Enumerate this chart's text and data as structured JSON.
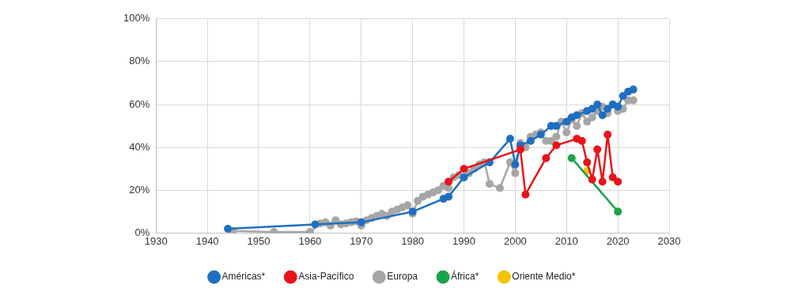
{
  "chart_data": {
    "type": "line",
    "xlim": [
      1930,
      2030
    ],
    "xticks": [
      1930,
      1940,
      1950,
      1960,
      1970,
      1980,
      1990,
      2000,
      2010,
      2020,
      2030
    ],
    "ylim": [
      0,
      100
    ],
    "yticks": [
      {
        "value": 0,
        "label": "0%"
      },
      {
        "value": 20,
        "label": "20%"
      },
      {
        "value": 40,
        "label": "40%"
      },
      {
        "value": 60,
        "label": "60%"
      },
      {
        "value": 80,
        "label": "80%"
      },
      {
        "value": 100,
        "label": "100%"
      }
    ],
    "grid": true,
    "legend": "bottom",
    "marker": "circle",
    "line_style": "solid",
    "series": [
      {
        "name": "Américas*",
        "color": "#1f6fc1",
        "x": [
          1944,
          1961,
          1970,
          1980,
          1986,
          1987,
          1990,
          1995,
          1999,
          2000,
          2001,
          2003,
          2005,
          2007,
          2008,
          2010,
          2011,
          2012,
          2014,
          2015,
          2016,
          2017,
          2018,
          2019,
          2020,
          2021,
          2022,
          2023
        ],
        "values": [
          2,
          4,
          5,
          10,
          16,
          17,
          26,
          33,
          44,
          32,
          41,
          43,
          46,
          50,
          50,
          52,
          54,
          55,
          57,
          58,
          60,
          55,
          58,
          60,
          59,
          64,
          66,
          67
        ]
      },
      {
        "name": "Asia-Pacífico",
        "color": "#e8141b",
        "x": [
          1987,
          1990,
          2001,
          2002,
          2006,
          2008,
          2012,
          2013,
          2014,
          2015,
          2016,
          2017,
          2018,
          2019,
          2020
        ],
        "values": [
          24,
          30,
          39,
          18,
          35,
          41,
          44,
          43,
          33,
          25,
          39,
          24,
          46,
          26,
          24
        ]
      },
      {
        "name": "Europa",
        "color": "#a6a6a6",
        "x": [
          1945,
          1953,
          1960,
          1962,
          1963,
          1964,
          1965,
          1966,
          1967,
          1968,
          1969,
          1970,
          1971,
          1972,
          1973,
          1974,
          1975,
          1976,
          1977,
          1978,
          1979,
          1980,
          1981,
          1982,
          1983,
          1984,
          1985,
          1986,
          1987,
          1988,
          1989,
          1990,
          1991,
          1992,
          1993,
          1994,
          1995,
          1997,
          1999,
          2000,
          2001,
          2002,
          2003,
          2004,
          2005,
          2006,
          2007,
          2008,
          2009,
          2010,
          2011,
          2012,
          2013,
          2014,
          2015,
          2016,
          2017,
          2018,
          2019,
          2020,
          2021,
          2022,
          2023
        ],
        "values": [
          1,
          0.5,
          0.5,
          4.5,
          5,
          3.5,
          6,
          4,
          4.5,
          5,
          5.5,
          3.5,
          6,
          7,
          8,
          9,
          8,
          10,
          11,
          12,
          13,
          9,
          15,
          17,
          18,
          19,
          20,
          22,
          21,
          26,
          27,
          26,
          28,
          30,
          32,
          33,
          23,
          21,
          33,
          28,
          42,
          40,
          45,
          46,
          47,
          43,
          43,
          45,
          52,
          47,
          53,
          50,
          56,
          52,
          54,
          57,
          59,
          56,
          60,
          57,
          58,
          62,
          62
        ]
      },
      {
        "name": "África*",
        "color": "#1aa34a",
        "x": [
          2011,
          2020
        ],
        "values": [
          35,
          10
        ]
      },
      {
        "name": "Oriente Medio*",
        "color": "#f5c400",
        "x": [
          2014
        ],
        "values": [
          29
        ]
      }
    ]
  }
}
